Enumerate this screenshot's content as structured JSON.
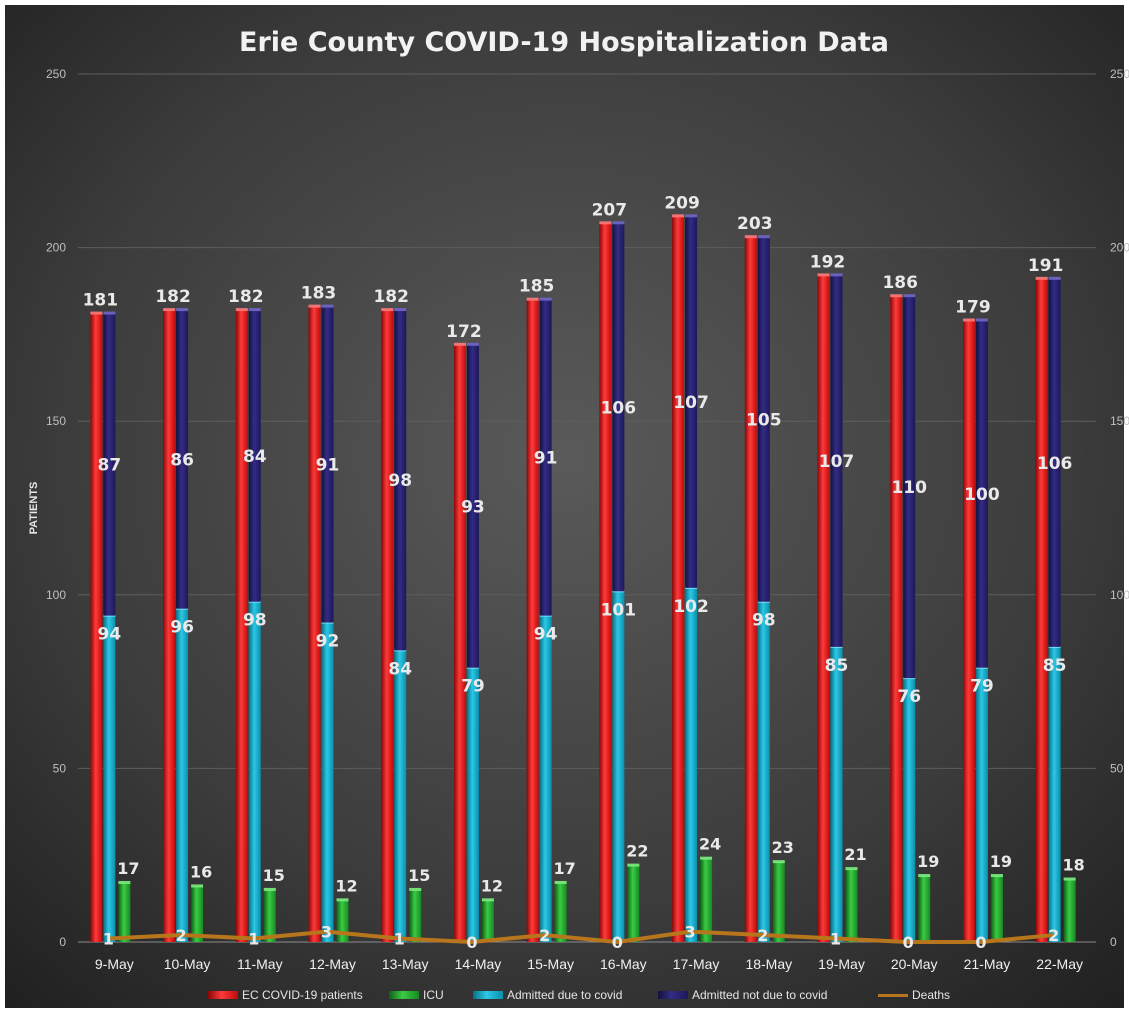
{
  "chart_data": {
    "type": "bar",
    "title": "Erie County COVID-19 Hospitalization Data",
    "ylabel": "PATIENTS",
    "xlabel": "",
    "ylim": [
      0,
      250
    ],
    "yticks": [
      0,
      50,
      100,
      150,
      200,
      250
    ],
    "categories": [
      "9-May",
      "10-May",
      "11-May",
      "12-May",
      "13-May",
      "14-May",
      "15-May",
      "16-May",
      "17-May",
      "18-May",
      "19-May",
      "20-May",
      "21-May",
      "22-May"
    ],
    "series": [
      {
        "name": "EC COVID-19 patients",
        "kind": "bar",
        "color": "#e31313",
        "values": [
          181,
          182,
          182,
          183,
          182,
          172,
          185,
          207,
          209,
          203,
          192,
          186,
          179,
          191
        ]
      },
      {
        "name": "Admitted due to covid",
        "kind": "stacked-bar",
        "color": "#12a9c9",
        "values": [
          94,
          96,
          98,
          92,
          84,
          79,
          94,
          101,
          102,
          98,
          85,
          76,
          79,
          85
        ]
      },
      {
        "name": "Admitted not due to covid",
        "kind": "stacked-bar",
        "color": "#241f6b",
        "values": [
          87,
          86,
          84,
          91,
          98,
          93,
          91,
          106,
          107,
          105,
          107,
          110,
          100,
          106
        ]
      },
      {
        "name": "ICU",
        "kind": "bar",
        "color": "#1c9a26",
        "values": [
          17,
          16,
          15,
          12,
          15,
          12,
          17,
          22,
          24,
          23,
          21,
          19,
          19,
          18
        ]
      },
      {
        "name": "Deaths",
        "kind": "line",
        "color": "#b8761c",
        "values": [
          1,
          2,
          1,
          3,
          1,
          0,
          2,
          0,
          3,
          2,
          1,
          0,
          0,
          2
        ]
      }
    ],
    "legend": {
      "placement": "bottom",
      "entries": [
        "EC COVID-19 patients",
        "ICU",
        "Admitted due to covid",
        "Admitted not due to covid",
        "Deaths"
      ]
    },
    "grid": true,
    "secondary_axis": true
  }
}
